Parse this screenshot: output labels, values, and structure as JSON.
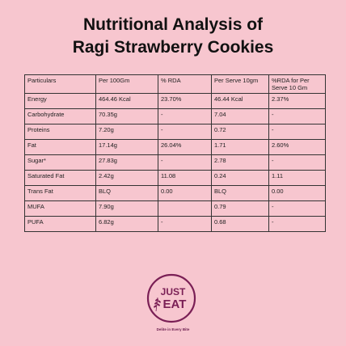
{
  "title": {
    "line1": "Nutritional Analysis of",
    "line2": "Ragi Strawberry Cookies"
  },
  "table": {
    "headers": [
      "Particulars",
      "Per 100Gm",
      "% RDA",
      "Per Serve 10gm",
      "%RDA  for Per Serve 10 Gm"
    ],
    "rows": [
      [
        "Energy",
        "464.46 Kcal",
        "23.70%",
        "46.44 Kcal",
        "2.37%"
      ],
      [
        "Carbohydrate",
        "70.35g",
        "-",
        "7.04",
        "-"
      ],
      [
        "Proteins",
        "7.20g",
        "-",
        "0.72",
        "-"
      ],
      [
        "Fat",
        "17.14g",
        "26.04%",
        "1.71",
        "2.60%"
      ],
      [
        "Sugar*",
        "27.83g",
        "-",
        "2.78",
        "-"
      ],
      [
        "Saturated Fat",
        "2.42g",
        "11.08",
        "0.24",
        "1.11"
      ],
      [
        "Trans Fat",
        "BLQ",
        "0.00",
        "BLQ",
        "0.00"
      ],
      [
        "MUFA",
        "7.90g",
        "",
        "0.79",
        "-"
      ],
      [
        "PUFA",
        "6.82g",
        "-",
        "0.68",
        "-"
      ]
    ]
  },
  "brand": {
    "logo_line1": "JUST",
    "logo_line2": "EAT",
    "tagline": "Delite in Every Bite",
    "color": "#7a1f55"
  },
  "colors": {
    "background": "#f7c6cf",
    "text": "#111111"
  }
}
